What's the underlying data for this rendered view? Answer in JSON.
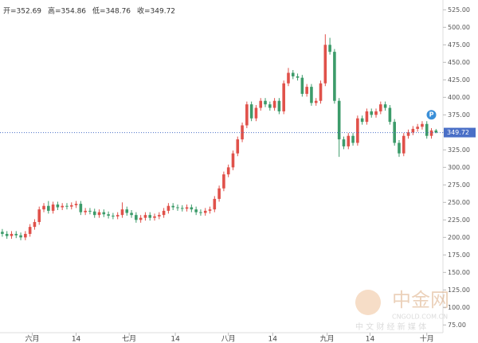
{
  "chart_data": {
    "type": "candlestick",
    "header": {
      "open_label": "开=352.69",
      "high_label": "高=354.86",
      "low_label": "低=348.76",
      "close_label": "收=349.72"
    },
    "last_price_label": "349.72",
    "marker_label": "P",
    "watermark": {
      "brand": "中金网",
      "site": "CNGOLD.COM.CN",
      "slogan": "中 文 财 经 新 媒 体"
    },
    "up_color": "#e0514a",
    "down_color": "#3c9b6a",
    "last_price_color": "#4a6fc7",
    "ylim": [
      64,
      539
    ],
    "yticks": [
      75,
      100,
      125,
      150,
      175,
      200,
      225,
      250,
      275,
      300,
      325,
      350,
      375,
      400,
      425,
      450,
      475,
      500,
      525
    ],
    "yticks_labels": [
      "75.00",
      "100.00",
      "125.00",
      "150.00",
      "175.00",
      "200.00",
      "225.00",
      "250.00",
      "275.00",
      "300.00",
      "325.00",
      "350.00",
      "375.00",
      "400.00",
      "425.00",
      "450.00",
      "475.00",
      "500.00",
      "525.00"
    ],
    "xlim": [
      -0.5,
      95.5
    ],
    "xticks": [
      {
        "value": 6.5,
        "label": "六月"
      },
      {
        "value": 16,
        "label": "14"
      },
      {
        "value": 27.5,
        "label": "七月"
      },
      {
        "value": 37.5,
        "label": "14"
      },
      {
        "value": 49,
        "label": "八月"
      },
      {
        "value": 58.6,
        "label": "14"
      },
      {
        "value": 70.4,
        "label": "九月"
      },
      {
        "value": 79.7,
        "label": "14"
      },
      {
        "value": 92,
        "label": "十月"
      }
    ],
    "open": [
      208,
      205,
      202,
      205,
      203,
      200,
      205,
      215,
      222,
      240,
      245,
      238,
      247,
      243,
      245,
      244,
      246,
      248,
      236,
      238,
      237,
      232,
      236,
      233,
      231,
      230,
      232,
      240,
      235,
      232,
      225,
      228,
      232,
      228,
      230,
      232,
      238,
      245,
      243,
      242,
      241,
      243,
      240,
      236,
      235,
      238,
      240,
      255,
      270,
      290,
      300,
      320,
      340,
      360,
      390,
      370,
      385,
      395,
      390,
      385,
      395,
      380,
      420,
      435,
      430,
      428,
      405,
      415,
      392,
      395,
      420,
      475,
      465,
      395,
      340,
      330,
      345,
      335,
      370,
      365,
      380,
      375,
      380,
      390,
      385,
      365,
      335,
      320,
      345,
      350,
      355,
      358,
      362,
      345,
      352.69
    ],
    "high": [
      212,
      209,
      209,
      209,
      207,
      209,
      219,
      226,
      244,
      249,
      252,
      251,
      251,
      249,
      249,
      250,
      252,
      252,
      242,
      242,
      241,
      240,
      240,
      237,
      235,
      236,
      250,
      244,
      239,
      236,
      232,
      236,
      236,
      234,
      236,
      242,
      249,
      249,
      247,
      246,
      247,
      247,
      244,
      240,
      242,
      244,
      259,
      274,
      294,
      304,
      324,
      344,
      364,
      394,
      394,
      389,
      399,
      399,
      394,
      399,
      399,
      424,
      442,
      439,
      434,
      432,
      419,
      419,
      399,
      424,
      490,
      485,
      469,
      399,
      344,
      349,
      349,
      374,
      374,
      384,
      384,
      384,
      394,
      394,
      389,
      369,
      339,
      349,
      354,
      359,
      362,
      366,
      366,
      356,
      354.86
    ],
    "low": [
      201,
      198,
      198,
      199,
      196,
      196,
      201,
      211,
      218,
      236,
      234,
      234,
      239,
      239,
      240,
      240,
      242,
      232,
      232,
      233,
      228,
      228,
      229,
      227,
      226,
      226,
      228,
      231,
      228,
      221,
      221,
      224,
      224,
      224,
      226,
      228,
      234,
      239,
      238,
      237,
      237,
      236,
      232,
      231,
      231,
      234,
      236,
      251,
      266,
      286,
      296,
      316,
      336,
      356,
      366,
      366,
      381,
      386,
      381,
      381,
      376,
      376,
      416,
      426,
      424,
      401,
      401,
      388,
      388,
      391,
      416,
      461,
      391,
      315,
      326,
      326,
      331,
      331,
      361,
      361,
      371,
      371,
      376,
      381,
      361,
      331,
      315,
      316,
      341,
      346,
      351,
      354,
      341,
      341,
      348.76
    ],
    "close": [
      205,
      202,
      205,
      203,
      200,
      205,
      215,
      222,
      240,
      245,
      238,
      247,
      243,
      245,
      244,
      246,
      248,
      236,
      238,
      237,
      232,
      236,
      233,
      231,
      230,
      232,
      240,
      235,
      232,
      225,
      228,
      232,
      228,
      230,
      232,
      238,
      245,
      243,
      242,
      241,
      243,
      240,
      236,
      235,
      238,
      240,
      255,
      270,
      290,
      300,
      320,
      340,
      360,
      390,
      370,
      385,
      395,
      390,
      385,
      395,
      380,
      420,
      435,
      430,
      428,
      405,
      415,
      392,
      395,
      420,
      475,
      465,
      395,
      340,
      330,
      345,
      335,
      370,
      365,
      380,
      375,
      380,
      390,
      385,
      365,
      335,
      320,
      345,
      350,
      355,
      358,
      362,
      345,
      352.69,
      349.72
    ]
  }
}
